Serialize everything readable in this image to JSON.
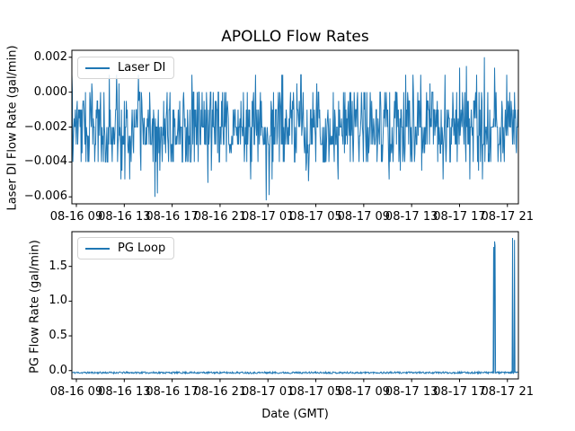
{
  "figure": {
    "title": "APOLLO Flow Rates",
    "xlabel": "Date (GMT)",
    "accent_color": "#1f77b4",
    "x_ticks": [
      {
        "f": 0.01008,
        "label": "08-16 09"
      },
      {
        "f": 0.11734,
        "label": "08-16 13"
      },
      {
        "f": 0.2246,
        "label": "08-16 17"
      },
      {
        "f": 0.33186,
        "label": "08-16 21"
      },
      {
        "f": 0.43911,
        "label": "08-17 01"
      },
      {
        "f": 0.54637,
        "label": "08-17 05"
      },
      {
        "f": 0.65363,
        "label": "08-17 09"
      },
      {
        "f": 0.76089,
        "label": "08-17 13"
      },
      {
        "f": 0.86815,
        "label": "08-17 17"
      },
      {
        "f": 0.9754,
        "label": "08-17 21"
      }
    ]
  },
  "chart_data": [
    {
      "type": "line",
      "subplot": "top",
      "series_name": "Laser DI",
      "ylabel": "Laser DI Flow Rate (gal/min)",
      "color": "#1f77b4",
      "legend_position": "upper left",
      "ylim": [
        -0.0064,
        0.0024
      ],
      "y_ticks": [
        {
          "v": 0.002,
          "label": "0.002"
        },
        {
          "v": 0.0,
          "label": "0.000"
        },
        {
          "v": -0.002,
          "label": "−0.002"
        },
        {
          "v": -0.004,
          "label": "−0.004"
        },
        {
          "v": -0.006,
          "label": "−0.006"
        }
      ],
      "description": "Dense noise band oscillating mostly between −0.004 and 0.000 gal/min, centered near −0.002; sparse spikes up to 0.001–0.002 and dips down to −0.005/−0.006",
      "n_points": 920,
      "seed": 7,
      "noise_levels": [
        0.001,
        0.0005,
        0.0,
        -0.0005,
        -0.001,
        -0.0015,
        -0.002,
        -0.0025,
        -0.003,
        -0.0035,
        -0.004,
        -0.0045,
        -0.005
      ],
      "noise_weights": [
        0.013,
        0.01,
        0.1,
        0.06,
        0.17,
        0.08,
        0.2,
        0.08,
        0.17,
        0.04,
        0.1,
        0.008,
        0.012
      ],
      "events": [
        {
          "f": 0.186,
          "v": -0.006
        },
        {
          "f": 0.192,
          "v": -0.0058
        },
        {
          "f": 0.305,
          "v": -0.0052
        },
        {
          "f": 0.435,
          "v": -0.0062
        },
        {
          "f": 0.442,
          "v": -0.0059
        },
        {
          "f": 0.53,
          "v": -0.0051
        },
        {
          "f": 0.868,
          "v": 0.0014
        },
        {
          "f": 0.884,
          "v": 0.0015
        },
        {
          "f": 0.9234,
          "v": 0.002
        },
        {
          "f": 0.947,
          "v": 0.0014
        }
      ]
    },
    {
      "type": "line",
      "subplot": "bottom",
      "series_name": "PG Loop",
      "ylabel": "PG Flow Rate (gal/min)",
      "color": "#1f77b4",
      "legend_position": "upper left",
      "ylim": [
        -0.12,
        2.0
      ],
      "y_ticks": [
        {
          "v": 0.0,
          "label": "0.0"
        },
        {
          "v": 0.5,
          "label": "0.5"
        },
        {
          "v": 1.0,
          "label": "1.0"
        },
        {
          "v": 1.5,
          "label": "1.5"
        }
      ],
      "description": "Flat noisy baseline near −0.03 gal/min for the whole span, with brief spikes to ~1.86 gal/min around 08-17 19:20 and ~1.9 gal/min around 08-17 21:40–21:50",
      "n_points": 920,
      "seed": 11,
      "baseline": {
        "mean": -0.03,
        "amplitude": 0.013
      },
      "events": [
        {
          "f": 0.9447,
          "v": 1.78
        },
        {
          "f": 0.9467,
          "v": 1.86
        },
        {
          "f": 0.9478,
          "v": 1.8
        },
        {
          "f": 0.987,
          "v": 1.91
        },
        {
          "f": 0.991,
          "v": 1.88
        }
      ]
    }
  ]
}
